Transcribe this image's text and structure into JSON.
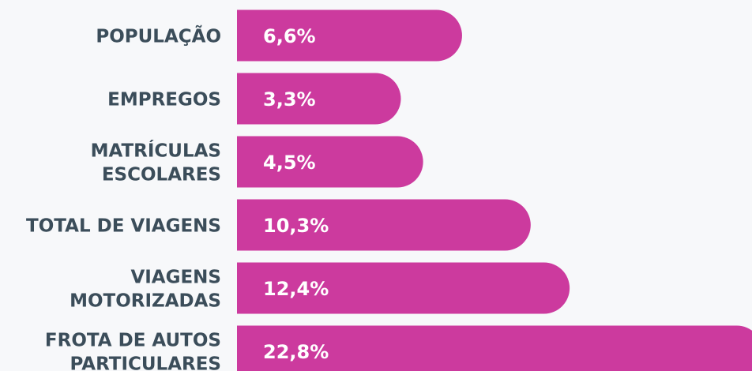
{
  "chart_data": {
    "type": "bar",
    "orientation": "horizontal",
    "categories": [
      [
        "POPULAÇÃO"
      ],
      [
        "EMPREGOS"
      ],
      [
        "MATRÍCULAS",
        "ESCOLARES"
      ],
      [
        "TOTAL DE VIAGENS"
      ],
      [
        "VIAGENS",
        "MOTORIZADAS"
      ],
      [
        "FROTA DE AUTOS",
        "PARTICULARES"
      ]
    ],
    "values": [
      6.6,
      3.3,
      4.5,
      10.3,
      12.4,
      22.8
    ],
    "value_labels": [
      "6,6%",
      "3,3%",
      "4,5%",
      "10,3%",
      "12,4%",
      "22,8%"
    ],
    "color": "#cc3a9e",
    "xlim": [
      0,
      23
    ]
  }
}
